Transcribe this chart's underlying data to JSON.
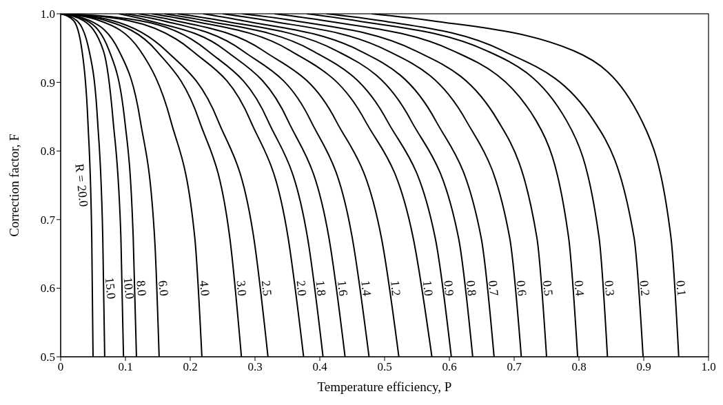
{
  "chart_data": {
    "type": "line",
    "xlabel": "Temperature efficiency, P",
    "ylabel": "Correction factor, F",
    "xlim": [
      0,
      1
    ],
    "ylim": [
      0.5,
      1
    ],
    "xticks": [
      0,
      0.1,
      0.2,
      0.3,
      0.4,
      0.5,
      0.6,
      0.7,
      0.8,
      0.9,
      {
        "value": 1,
        "label": "1.0"
      }
    ],
    "yticks": [
      0.5,
      0.6,
      0.7,
      0.8,
      0.9,
      {
        "value": 1,
        "label": "1.0"
      }
    ],
    "grid": false,
    "marker": "none",
    "line_style": "solid",
    "series": [
      {
        "name": "R = 20.0",
        "color": "#000000",
        "x": [
          0,
          0.02,
          0.033,
          0.042,
          0.048,
          0.05
        ],
        "values": [
          1,
          0.99,
          0.946,
          0.844,
          0.674,
          0.5
        ]
      },
      {
        "name": "15.0",
        "color": "#000000",
        "x": [
          0,
          0.025,
          0.044,
          0.057,
          0.065,
          0.068
        ],
        "values": [
          1,
          0.99,
          0.946,
          0.844,
          0.674,
          0.5
        ]
      },
      {
        "name": "10.0",
        "color": "#000000",
        "x": [
          0,
          0.035,
          0.066,
          0.081,
          0.093,
          0.097
        ],
        "values": [
          1,
          0.99,
          0.946,
          0.844,
          0.674,
          0.5
        ]
      },
      {
        "name": "8.0",
        "color": "#000000",
        "x": [
          0,
          0.04,
          0.075,
          0.099,
          0.112,
          0.117
        ],
        "values": [
          1,
          0.99,
          0.946,
          0.844,
          0.674,
          0.5
        ]
      },
      {
        "name": "6.0",
        "color": "#000000",
        "x": [
          0,
          0.045,
          0.09,
          0.123,
          0.145,
          0.152
        ],
        "values": [
          1,
          0.99,
          0.946,
          0.844,
          0.674,
          0.5
        ]
      },
      {
        "name": "4.0",
        "color": "#000000",
        "x": [
          0,
          0.06,
          0.123,
          0.17,
          0.207,
          0.218
        ],
        "values": [
          1,
          0.99,
          0.946,
          0.844,
          0.674,
          0.5
        ]
      },
      {
        "name": "3.0",
        "color": "#000000",
        "x": [
          0,
          0.07,
          0.148,
          0.214,
          0.261,
          0.279
        ],
        "values": [
          1,
          0.99,
          0.946,
          0.844,
          0.674,
          0.5
        ]
      },
      {
        "name": "2.5",
        "color": "#000000",
        "x": [
          0,
          0.08,
          0.163,
          0.243,
          0.298,
          0.32
        ],
        "values": [
          1,
          0.99,
          0.946,
          0.844,
          0.674,
          0.5
        ]
      },
      {
        "name": "2.0",
        "color": "#000000",
        "x": [
          0,
          0.105,
          0.203,
          0.293,
          0.351,
          0.375
        ],
        "values": [
          1,
          0.99,
          0.946,
          0.844,
          0.674,
          0.5
        ]
      },
      {
        "name": "1.8",
        "color": "#000000",
        "x": [
          0,
          0.122,
          0.227,
          0.32,
          0.381,
          0.405
        ],
        "values": [
          1,
          0.99,
          0.946,
          0.844,
          0.674,
          0.5
        ]
      },
      {
        "name": "1.6",
        "color": "#000000",
        "x": [
          0.09,
          0.136,
          0.255,
          0.351,
          0.414,
          0.439
        ],
        "values": [
          1,
          0.99,
          0.946,
          0.844,
          0.674,
          0.5
        ]
      },
      {
        "name": "1.4",
        "color": "#000000",
        "x": [
          0.1,
          0.157,
          0.281,
          0.386,
          0.45,
          0.476
        ],
        "values": [
          1,
          0.99,
          0.946,
          0.844,
          0.674,
          0.5
        ]
      },
      {
        "name": "1.2",
        "color": "#000000",
        "x": [
          0.12,
          0.177,
          0.313,
          0.425,
          0.495,
          0.522
        ],
        "values": [
          1,
          0.99,
          0.946,
          0.844,
          0.674,
          0.5
        ]
      },
      {
        "name": "1.0",
        "color": "#000000",
        "x": [
          0.14,
          0.201,
          0.355,
          0.47,
          0.544,
          0.573
        ],
        "values": [
          1,
          0.99,
          0.946,
          0.844,
          0.674,
          0.5
        ]
      },
      {
        "name": "0.9",
        "color": "#000000",
        "x": [
          0.16,
          0.223,
          0.389,
          0.504,
          0.578,
          0.603
        ],
        "values": [
          1,
          0.99,
          0.946,
          0.844,
          0.674,
          0.5
        ]
      },
      {
        "name": "0.8",
        "color": "#000000",
        "x": [
          0.18,
          0.248,
          0.426,
          0.541,
          0.614,
          0.636
        ],
        "values": [
          1,
          0.99,
          0.946,
          0.844,
          0.674,
          0.5
        ]
      },
      {
        "name": "0.7",
        "color": "#000000",
        "x": [
          0.22,
          0.281,
          0.462,
          0.579,
          0.649,
          0.669
        ],
        "values": [
          1,
          0.99,
          0.946,
          0.844,
          0.674,
          0.5
        ]
      },
      {
        "name": "0.6",
        "color": "#000000",
        "x": [
          0.25,
          0.32,
          0.505,
          0.626,
          0.693,
          0.711
        ],
        "values": [
          1,
          0.99,
          0.946,
          0.844,
          0.674,
          0.5
        ]
      },
      {
        "name": "0.5",
        "color": "#000000",
        "x": [
          0.28,
          0.36,
          0.548,
          0.675,
          0.735,
          0.75
        ],
        "values": [
          1,
          0.99,
          0.946,
          0.844,
          0.674,
          0.5
        ]
      },
      {
        "name": "0.4",
        "color": "#000000",
        "x": [
          0.33,
          0.407,
          0.606,
          0.734,
          0.784,
          0.798
        ],
        "values": [
          1,
          0.99,
          0.946,
          0.844,
          0.674,
          0.5
        ]
      },
      {
        "name": "0.3",
        "color": "#000000",
        "x": [
          0.38,
          0.456,
          0.658,
          0.781,
          0.831,
          0.844
        ],
        "values": [
          1,
          0.99,
          0.946,
          0.844,
          0.674,
          0.5
        ]
      },
      {
        "name": "0.2",
        "color": "#000000",
        "x": [
          0.41,
          0.494,
          0.683,
          0.823,
          0.885,
          0.899
        ],
        "values": [
          1,
          0.99,
          0.946,
          0.844,
          0.674,
          0.5
        ]
      },
      {
        "name": "0.1",
        "color": "#000000",
        "x": [
          0.48,
          0.572,
          0.792,
          0.897,
          0.942,
          0.954
        ],
        "values": [
          1,
          0.99,
          0.946,
          0.844,
          0.674,
          0.5
        ]
      }
    ]
  }
}
